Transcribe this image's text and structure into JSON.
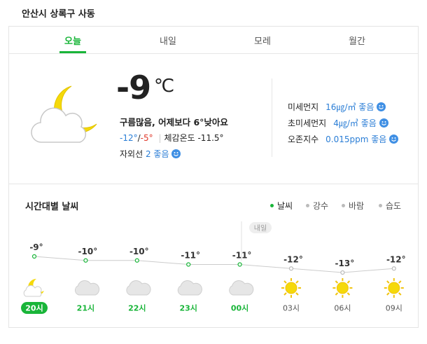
{
  "header": {
    "location": "안산시 상록구 사동"
  },
  "tabs": [
    "오늘",
    "내일",
    "모레",
    "월간"
  ],
  "current": {
    "temp": "-9",
    "unit": "℃",
    "desc": "구름많음, 어제보다 6°낮아요",
    "low": "-12°",
    "slash": "/",
    "high": "-5°",
    "feel": "체감온도 -11.5°",
    "uv_label": "자외선",
    "uv_value": "2 좋음"
  },
  "air": [
    {
      "name": "미세먼지",
      "value": "16㎍/㎥ 좋음"
    },
    {
      "name": "초미세먼지",
      "value": "4㎍/㎥ 좋음"
    },
    {
      "name": "오존지수",
      "value": "0.015ppm 좋음"
    }
  ],
  "hourly": {
    "title": "시간대별 날씨",
    "legend": [
      "날씨",
      "강수",
      "바람",
      "습도"
    ],
    "tomorrow": "내일",
    "times": [
      "20시",
      "21시",
      "22시",
      "23시",
      "00시",
      "03시",
      "06시",
      "09시"
    ],
    "values": [
      -9,
      -10,
      -10,
      -11,
      -11,
      -12,
      -13,
      -12
    ],
    "value_labels": [
      "-9°",
      "-10°",
      "-10°",
      "-11°",
      "-11°",
      "-12°",
      "-13°",
      "-12°"
    ]
  }
}
